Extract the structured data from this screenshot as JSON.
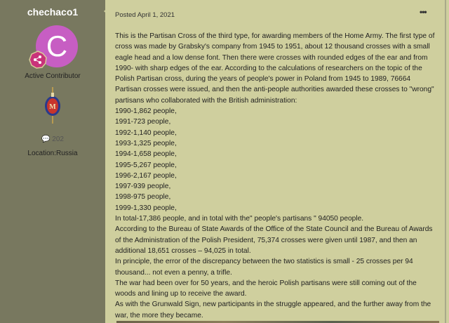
{
  "author": {
    "username": "chechaco1",
    "avatar_letter": "C",
    "avatar_color": "#c75ec3",
    "rank": "Active Contributor",
    "rank_badge_icon": "share-badge-icon",
    "post_count": "202",
    "location": "Location:Russia"
  },
  "post": {
    "posted": "Posted April 1, 2021",
    "more_label": "•••",
    "paragraphs": [
      "This is the Partisan Cross of the third type, for awarding members of the Home Army. The first type of cross was made by Grabsky's company from 1945 to 1951, about 12 thousand crosses with a small eagle head and a low dense font. Then there were crosses with rounded edges of the ear and from 1990- with sharp edges of the ear. According to the calculations of researchers on the topic of the Polish Partisan cross, during the years of people's power in Poland from 1945 to 1989, 76664 Partisan crosses were issued, and then the anti-people authorities awarded these crosses to \"wrong\" partisans who collaborated with the British administration:",
      "1990-1,862 people,",
      "1991-723 people,",
      "1992-1,140 people,",
      "1993-1,325 people,",
      "1994-1,658 people,",
      "1995-5,267 people,",
      "1996-2,167 people,",
      "1997-939 people,",
      "1998-975 people,",
      "1999-1,330 people,",
      "In total-17,386 people, and in total with the\" people's partisans \" 94050 people.",
      "According to the Bureau of State Awards of the Office of the State Council and the Bureau of Awards of the Administration of the Polish President, 75,374 crosses were given until 1987, and then an additional 18,651 crosses – 94,025 in total.",
      "In principle, the error of the discrepancy between the two statistics is small - 25 crosses per 94 thousand... not even a penny, a trifle.",
      "The war had been over for 50 years, and the heroic Polish partisans were still coming out of the woods and lining up to receive the award.",
      "As with the Grunwald Sign, new participants in the struggle appeared, and the further away from the war, the more they became."
    ]
  }
}
